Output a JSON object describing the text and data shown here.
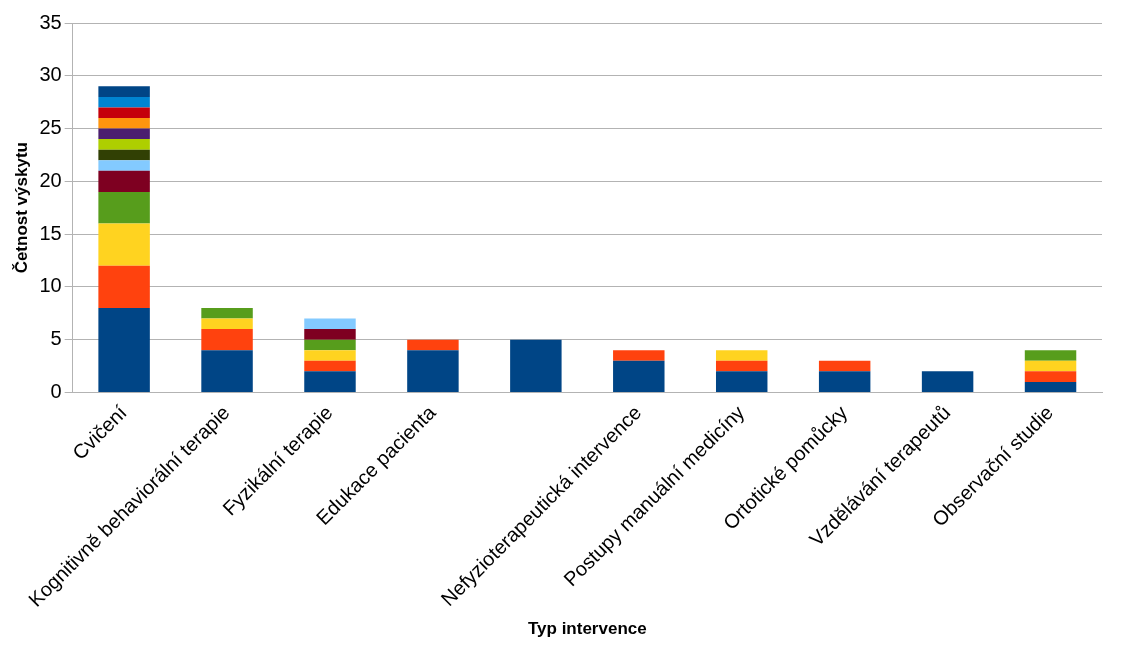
{
  "chart_data": {
    "type": "bar",
    "stacked": true,
    "xlabel": "Typ intervence",
    "ylabel": "Četnost výskytu",
    "categories": [
      "Cvičení",
      "Kognitivně behaviorální terapie",
      "Fyzikální terapie",
      "Edukace pacienta",
      null,
      "Nefyzioterapeutická intervence",
      "Postupy manuální medicíny",
      "Ortotické pomůcky",
      "Vzdělávání terapeutů",
      "Observační studie"
    ],
    "series": [
      {
        "color": "#004586",
        "values": [
          8,
          4,
          2,
          4,
          5,
          3,
          2,
          2,
          2,
          1
        ]
      },
      {
        "color": "#ff420e",
        "values": [
          4,
          2,
          1,
          1,
          0,
          1,
          1,
          1,
          0,
          1
        ]
      },
      {
        "color": "#ffd320",
        "values": [
          4,
          1,
          1,
          0,
          0,
          0,
          1,
          0,
          0,
          1
        ]
      },
      {
        "color": "#579d1c",
        "values": [
          3,
          1,
          1,
          0,
          0,
          0,
          0,
          0,
          0,
          1
        ]
      },
      {
        "color": "#7e0021",
        "values": [
          2,
          0,
          1,
          0,
          0,
          0,
          0,
          0,
          0,
          0
        ]
      },
      {
        "color": "#83caff",
        "values": [
          1,
          0,
          1,
          0,
          0,
          0,
          0,
          0,
          0,
          0
        ]
      },
      {
        "color": "#314004",
        "values": [
          1,
          0,
          0,
          0,
          0,
          0,
          0,
          0,
          0,
          0
        ]
      },
      {
        "color": "#aecf00",
        "values": [
          1,
          0,
          0,
          0,
          0,
          0,
          0,
          0,
          0,
          0
        ]
      },
      {
        "color": "#4b1f6f",
        "values": [
          1,
          0,
          0,
          0,
          0,
          0,
          0,
          0,
          0,
          0
        ]
      },
      {
        "color": "#ff950e",
        "values": [
          1,
          0,
          0,
          0,
          0,
          0,
          0,
          0,
          0,
          0
        ]
      },
      {
        "color": "#c5000b",
        "values": [
          1,
          0,
          0,
          0,
          0,
          0,
          0,
          0,
          0,
          0
        ]
      },
      {
        "color": "#0084d1",
        "values": [
          1,
          0,
          0,
          0,
          0,
          0,
          0,
          0,
          0,
          0
        ]
      },
      {
        "color": "#004586",
        "values": [
          1,
          0,
          0,
          0,
          0,
          0,
          0,
          0,
          0,
          0
        ]
      }
    ],
    "ylim": [
      0,
      35
    ],
    "yticks": [
      0,
      5,
      10,
      15,
      20,
      25,
      30,
      35
    ],
    "grid": "y",
    "legend": false
  }
}
